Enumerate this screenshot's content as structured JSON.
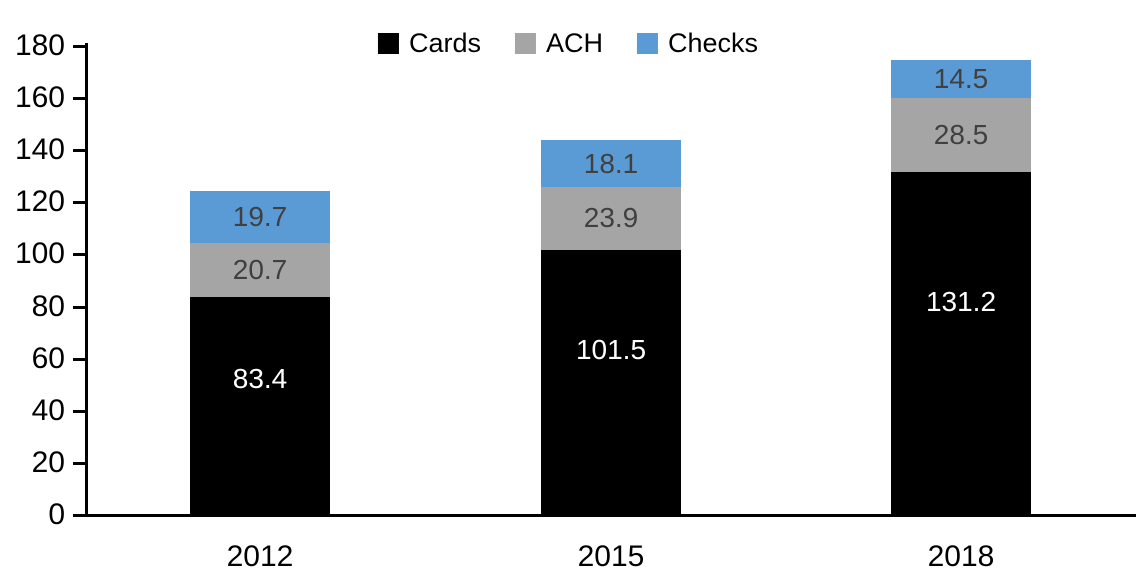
{
  "chart_data": {
    "type": "bar",
    "stacked": true,
    "title": "",
    "xlabel": "",
    "ylabel": "",
    "categories": [
      "2012",
      "2015",
      "2018"
    ],
    "series": [
      {
        "name": "Cards",
        "color": "#000000",
        "label_color": "#ffffff",
        "values": [
          83.4,
          101.5,
          131.2
        ]
      },
      {
        "name": "ACH",
        "color": "#a5a5a5",
        "label_color": "#404040",
        "values": [
          20.7,
          23.9,
          28.5
        ]
      },
      {
        "name": "Checks",
        "color": "#5b9bd5",
        "label_color": "#404040",
        "values": [
          19.7,
          18.1,
          14.5
        ]
      }
    ],
    "totals": [
      123.8,
      143.5,
      174.2
    ],
    "ylim": [
      0,
      180
    ],
    "ytick_step": 20,
    "yticks": [
      0,
      20,
      40,
      60,
      80,
      100,
      120,
      140,
      160,
      180
    ],
    "grid": false,
    "legend_position": "top-center",
    "axis_color": "#000000",
    "background_color": "#ffffff"
  }
}
